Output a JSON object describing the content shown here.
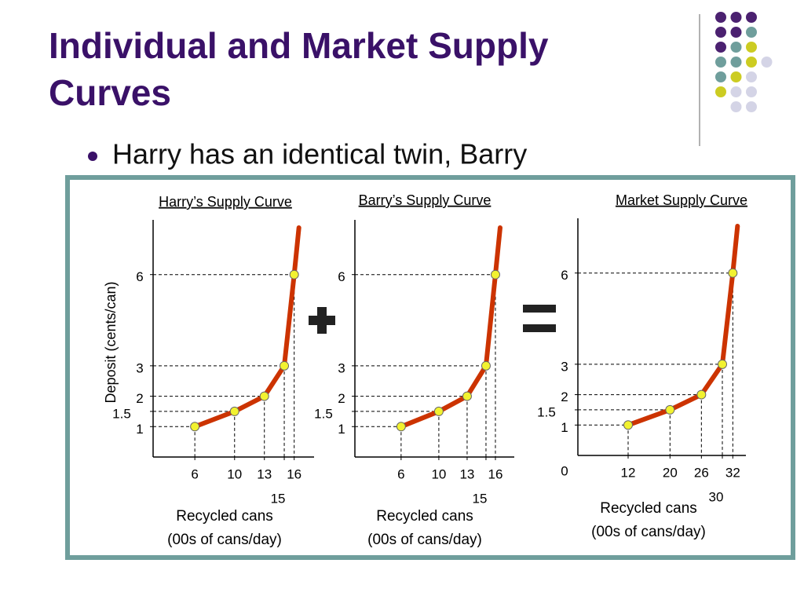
{
  "title": "Individual and Market Supply Curves",
  "bullet": "Harry has an identical twin, Barry",
  "chart_data": [
    {
      "type": "line",
      "title": "Harry’s Supply Curve",
      "ylabel": "Deposit (cents/can)",
      "xlabel": [
        "Recycled cans",
        "(00s of cans/day)"
      ],
      "x": [
        6,
        10,
        13,
        15,
        16
      ],
      "values": [
        1,
        1.5,
        2,
        3,
        6
      ],
      "xlim": [
        1.8,
        18
      ],
      "ylim": [
        0,
        7.8
      ],
      "xticks": [
        6,
        10,
        13,
        15,
        16
      ],
      "yticks": [
        1,
        1.5,
        2,
        3,
        6
      ],
      "color": "#cc3300",
      "marker_color": "#f2f230"
    },
    {
      "type": "line",
      "title": "Barry’s Supply Curve",
      "xlabel": [
        "Recycled cans",
        "(00s of cans/day)"
      ],
      "x": [
        6,
        10,
        13,
        15,
        16
      ],
      "values": [
        1,
        1.5,
        2,
        3,
        6
      ],
      "xlim": [
        1.1,
        18
      ],
      "ylim": [
        0,
        7.8
      ],
      "xticks": [
        6,
        10,
        13,
        15,
        16
      ],
      "yticks": [
        1,
        1.5,
        2,
        3,
        6
      ],
      "color": "#cc3300",
      "marker_color": "#f2f230"
    },
    {
      "type": "line",
      "title": "Market Supply Curve",
      "origin_label": "0",
      "xlabel": [
        "Recycled cans",
        "(00s of cans/day)"
      ],
      "x": [
        12,
        20,
        26,
        30,
        32
      ],
      "values": [
        1,
        1.5,
        2,
        3,
        6
      ],
      "xlim": [
        2.4,
        34.5
      ],
      "ylim": [
        0,
        7.8
      ],
      "xticks": [
        12,
        20,
        26,
        30,
        32
      ],
      "yticks": [
        1,
        1.5,
        2,
        3,
        6
      ],
      "color": "#cc3300",
      "marker_color": "#f2f230"
    }
  ]
}
